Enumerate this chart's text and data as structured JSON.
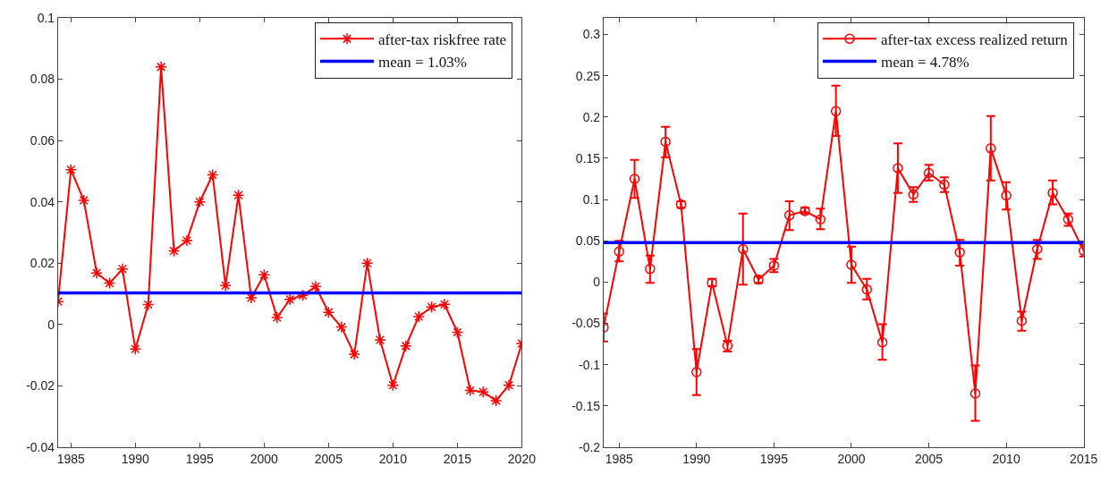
{
  "chart_data": [
    {
      "type": "line",
      "x": [
        1984,
        1985,
        1986,
        1987,
        1988,
        1989,
        1990,
        1991,
        1992,
        1993,
        1994,
        1995,
        1996,
        1997,
        1998,
        1999,
        2000,
        2001,
        2002,
        2003,
        2004,
        2005,
        2006,
        2007,
        2008,
        2009,
        2010,
        2011,
        2012,
        2013,
        2014,
        2015,
        2016,
        2017,
        2018,
        2019,
        2020
      ],
      "series": [
        {
          "name": "after-tax riskfree rate",
          "color": "#ff0000",
          "values": [
            0.0075,
            0.0505,
            0.0405,
            0.0168,
            0.0135,
            0.0181,
            -0.008,
            0.0065,
            0.084,
            0.024,
            0.0274,
            0.04,
            0.0488,
            0.0127,
            0.0422,
            0.0087,
            0.0162,
            0.0023,
            0.0082,
            0.0095,
            0.0124,
            0.004,
            -0.0008,
            -0.0097,
            0.02,
            -0.005,
            -0.0198,
            -0.007,
            0.0026,
            0.0057,
            0.0066,
            -0.0025,
            -0.0215,
            -0.022,
            -0.0248,
            -0.0198,
            -0.0062
          ]
        }
      ],
      "ref_lines": [
        {
          "axis": "y",
          "value": 0.0103,
          "label": "mean = 1.03%",
          "color": "#0000ff"
        }
      ],
      "marker": "cross",
      "line_style": "solid",
      "legend": "top right",
      "grid": false,
      "xlim": [
        1984,
        2020
      ],
      "xticks": [
        1985,
        1990,
        1995,
        2000,
        2005,
        2010,
        2015,
        2020
      ],
      "ylim": [
        -0.04,
        0.1
      ],
      "yticks": [
        -0.04,
        -0.02,
        0,
        0.02,
        0.04,
        0.06,
        0.08,
        0.1
      ]
    },
    {
      "type": "line",
      "x": [
        1984,
        1985,
        1986,
        1987,
        1988,
        1989,
        1990,
        1991,
        1992,
        1993,
        1994,
        1995,
        1996,
        1997,
        1998,
        1999,
        2000,
        2001,
        2002,
        2003,
        2004,
        2005,
        2006,
        2007,
        2008,
        2009,
        2010,
        2011,
        2012,
        2013,
        2014,
        2015
      ],
      "series": [
        {
          "name": "after-tax excess realized return",
          "color": "#ff0000",
          "values": [
            -0.055,
            0.037,
            0.125,
            0.016,
            0.17,
            0.094,
            -0.109,
            -0.001,
            -0.077,
            0.04,
            0.003,
            0.02,
            0.081,
            0.086,
            0.076,
            0.207,
            0.021,
            -0.009,
            -0.073,
            0.138,
            0.106,
            0.132,
            0.118,
            0.036,
            -0.135,
            0.162,
            0.105,
            -0.047,
            0.04,
            0.108,
            0.076,
            0.038
          ],
          "errors": [
            [
              -0.072,
              -0.038
            ],
            [
              0.025,
              0.05
            ],
            [
              0.102,
              0.148
            ],
            [
              -0.001,
              0.032
            ],
            [
              0.151,
              0.188
            ],
            [
              0.09,
              0.098
            ],
            [
              -0.137,
              -0.081
            ],
            [
              -0.005,
              0.004
            ],
            [
              -0.084,
              -0.071
            ],
            [
              -0.003,
              0.083
            ],
            [
              -0.001,
              0.007
            ],
            [
              0.012,
              0.028
            ],
            [
              0.063,
              0.098
            ],
            [
              0.083,
              0.09
            ],
            [
              0.064,
              0.089
            ],
            [
              0.177,
              0.238
            ],
            [
              -0.001,
              0.043
            ],
            [
              -0.021,
              0.004
            ],
            [
              -0.094,
              -0.051
            ],
            [
              0.108,
              0.168
            ],
            [
              0.097,
              0.115
            ],
            [
              0.123,
              0.142
            ],
            [
              0.109,
              0.127
            ],
            [
              0.02,
              0.051
            ],
            [
              -0.168,
              -0.101
            ],
            [
              0.123,
              0.201
            ],
            [
              0.088,
              0.121
            ],
            [
              -0.059,
              -0.036
            ],
            [
              0.028,
              0.051
            ],
            [
              0.094,
              0.123
            ],
            [
              0.068,
              0.083
            ],
            [
              0.031,
              0.045
            ]
          ]
        }
      ],
      "ref_lines": [
        {
          "axis": "y",
          "value": 0.0478,
          "label": "mean = 4.78%",
          "color": "#0000ff"
        }
      ],
      "marker": "circle",
      "line_style": "solid",
      "legend": "top right",
      "grid": false,
      "xlim": [
        1984,
        2015
      ],
      "xticks": [
        1985,
        1990,
        1995,
        2000,
        2005,
        2010,
        2015
      ],
      "ylim": [
        -0.2,
        0.32
      ],
      "yticks": [
        -0.2,
        -0.15,
        -0.1,
        -0.05,
        0,
        0.05,
        0.1,
        0.15,
        0.2,
        0.25,
        0.3
      ]
    }
  ]
}
